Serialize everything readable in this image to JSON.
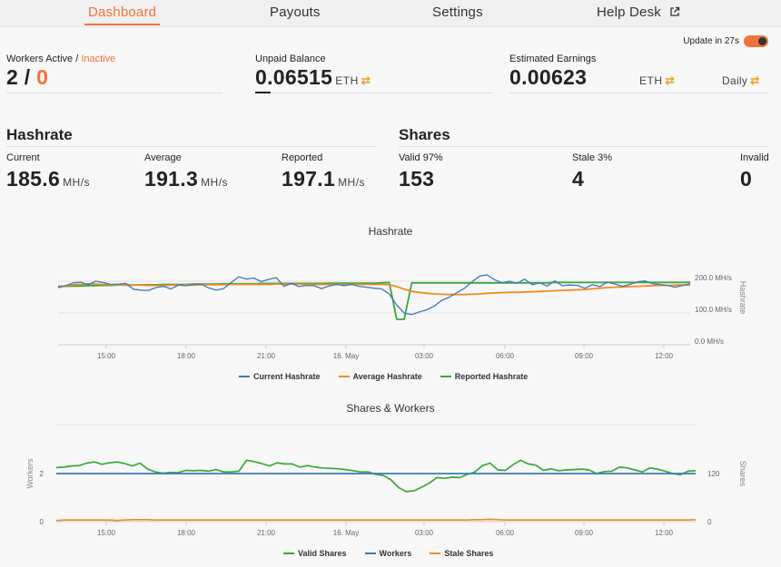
{
  "nav": {
    "dashboard": "Dashboard",
    "payouts": "Payouts",
    "settings": "Settings",
    "helpdesk": "Help Desk"
  },
  "update": {
    "label": "Update in 27s",
    "enabled": true
  },
  "workers": {
    "label_active": "Workers Active /",
    "label_inactive": "Inactive",
    "active": "2",
    "sep": " / ",
    "inactive": "0"
  },
  "unpaid": {
    "label": "Unpaid Balance",
    "value": "0.06515",
    "unit": "ETH"
  },
  "estimated": {
    "label": "Estimated Earnings",
    "value": "0.00623",
    "unit": "ETH",
    "period": "Daily"
  },
  "hashrate": {
    "title": "Hashrate",
    "current": {
      "label": "Current",
      "value": "185.6",
      "unit": "MH/s"
    },
    "average": {
      "label": "Average",
      "value": "191.3",
      "unit": "MH/s"
    },
    "reported": {
      "label": "Reported",
      "value": "197.1",
      "unit": "MH/s"
    }
  },
  "shares": {
    "title": "Shares",
    "valid": {
      "label": "Valid 97%",
      "value": "153"
    },
    "stale": {
      "label": "Stale 3%",
      "value": "4"
    },
    "invalid": {
      "label": "Invalid",
      "value": "0"
    }
  },
  "colors": {
    "accent": "#f0733a",
    "current": "#3a7ab8",
    "average": "#f08a25",
    "reported": "#3aa83a",
    "workers": "#3a7ab8",
    "valid": "#3aa83a",
    "stale": "#f08a25"
  },
  "chart_data": [
    {
      "type": "line",
      "title": "Hashrate",
      "ylabel": "Hashrate",
      "x_ticks": [
        "15:00",
        "18:00",
        "21:00",
        "16. May",
        "03:00",
        "06:00",
        "09:00",
        "12:00"
      ],
      "y_ticks": [
        "0.0 MH/s",
        "100.0 MH/s",
        "200.0 MH/s"
      ],
      "ylim": [
        0,
        270
      ],
      "legend_position": "bottom",
      "series": [
        {
          "name": "Current Hashrate",
          "values": [
            182,
            186,
            195,
            197,
            189,
            200,
            196,
            190,
            191,
            193,
            175,
            172,
            171,
            180,
            184,
            176,
            188,
            186,
            190,
            191,
            179,
            172,
            177,
            196,
            214,
            207,
            210,
            199,
            206,
            211,
            184,
            194,
            183,
            187,
            186,
            177,
            185,
            190,
            186,
            190,
            184,
            181,
            178,
            176,
            160,
            125,
            100,
            95,
            103,
            110,
            122,
            140,
            150,
            164,
            178,
            198,
            216,
            220,
            205,
            195,
            200,
            193,
            207,
            189,
            195,
            185,
            201,
            186,
            188,
            187,
            178,
            189,
            183,
            198,
            191,
            184,
            190,
            198,
            201,
            192,
            190,
            187,
            181,
            187,
            192
          ]
        },
        {
          "name": "Average Hashrate",
          "values": [
            180,
            185,
            189,
            190,
            192,
            191,
            190,
            189,
            189,
            188,
            188,
            188,
            187,
            187,
            187,
            188,
            188,
            188,
            188,
            189,
            189,
            189,
            189,
            190,
            190,
            190,
            190,
            190,
            190,
            191,
            191,
            191,
            191,
            190,
            190,
            190,
            190,
            190,
            190,
            190,
            190,
            190,
            190,
            190,
            189,
            183,
            175,
            168,
            165,
            162,
            160,
            159,
            158,
            158,
            158,
            159,
            160,
            162,
            163,
            164,
            165,
            165,
            166,
            167,
            168,
            169,
            170,
            171,
            172,
            173,
            174,
            176,
            178,
            180,
            181,
            182,
            183,
            184,
            185,
            186,
            187,
            187,
            188,
            188,
            188
          ]
        },
        {
          "name": "Reported Hashrate",
          "values": [
            184,
            184,
            185,
            185,
            186,
            186,
            187,
            187,
            188,
            188,
            188,
            189,
            189,
            189,
            190,
            190,
            190,
            190,
            191,
            191,
            191,
            191,
            192,
            192,
            192,
            192,
            192,
            193,
            193,
            193,
            193,
            193,
            193,
            193,
            193,
            193,
            194,
            194,
            194,
            194,
            194,
            194,
            194,
            195,
            196,
            80,
            80,
            195,
            195,
            195,
            195,
            195,
            195,
            195,
            195,
            195,
            195,
            195,
            195,
            195,
            195,
            195,
            195,
            195,
            195,
            195,
            196,
            196,
            196,
            196,
            196,
            196,
            196,
            196,
            196,
            196,
            196,
            196,
            196,
            196,
            196,
            196,
            196,
            196,
            197
          ]
        }
      ]
    },
    {
      "type": "line",
      "title": "Shares & Workers",
      "ylabel_left": "Workers",
      "ylabel_right": "Shares",
      "x_ticks": [
        "15:00",
        "18:00",
        "21:00",
        "16. May",
        "03:00",
        "06:00",
        "09:00",
        "12:00"
      ],
      "y_ticks_left": [
        "0",
        "2"
      ],
      "y_ticks_right": [
        "0",
        "120"
      ],
      "legend_position": "bottom",
      "series": [
        {
          "name": "Valid Shares",
          "axis": "right",
          "values": [
            135,
            136,
            139,
            140,
            146,
            149,
            143,
            147,
            149,
            145,
            139,
            146,
            131,
            124,
            121,
            123,
            122,
            128,
            127,
            128,
            126,
            130,
            124,
            124,
            126,
            153,
            150,
            145,
            139,
            147,
            144,
            144,
            136,
            140,
            136,
            134,
            133,
            132,
            130,
            127,
            124,
            124,
            118,
            115,
            104,
            85,
            75,
            77,
            86,
            96,
            110,
            108,
            111,
            110,
            118,
            124,
            140,
            146,
            129,
            128,
            142,
            153,
            144,
            141,
            128,
            132,
            127,
            129,
            130,
            131,
            129,
            120,
            125,
            126,
            136,
            134,
            129,
            124,
            134,
            131,
            126,
            120,
            117,
            126,
            127
          ]
        },
        {
          "name": "Workers",
          "axis": "left",
          "values": [
            2,
            2,
            2,
            2,
            2,
            2,
            2,
            2,
            2,
            2,
            2,
            2,
            2,
            2,
            2,
            2,
            2,
            2,
            2,
            2,
            2,
            2,
            2,
            2,
            2,
            2,
            2,
            2,
            2,
            2,
            2,
            2,
            2,
            2,
            2,
            2,
            2,
            2,
            2,
            2,
            2,
            2,
            2,
            2,
            2,
            2,
            2,
            2,
            2,
            2,
            2,
            2,
            2,
            2,
            2,
            2,
            2,
            2,
            2,
            2,
            2,
            2,
            2,
            2,
            2,
            2,
            2,
            2,
            2,
            2,
            2,
            2,
            2,
            2,
            2,
            2,
            2,
            2,
            2,
            2,
            2,
            2,
            2,
            2,
            2
          ]
        },
        {
          "name": "Stale Shares",
          "axis": "right",
          "values": [
            3,
            4,
            4,
            4,
            4,
            4,
            4,
            4,
            3,
            4,
            5,
            5,
            5,
            4,
            4,
            4,
            4,
            4,
            4,
            4,
            4,
            4,
            4,
            4,
            4,
            4,
            4,
            4,
            4,
            4,
            4,
            4,
            4,
            4,
            4,
            4,
            4,
            4,
            4,
            4,
            4,
            4,
            4,
            4,
            4,
            4,
            4,
            4,
            4,
            4,
            4,
            4,
            4,
            4,
            4,
            5,
            5,
            6,
            5,
            4,
            4,
            4,
            4,
            4,
            4,
            4,
            4,
            4,
            4,
            4,
            4,
            4,
            4,
            4,
            4,
            4,
            4,
            4,
            4,
            4,
            4,
            4,
            4,
            4,
            5
          ]
        }
      ]
    }
  ]
}
